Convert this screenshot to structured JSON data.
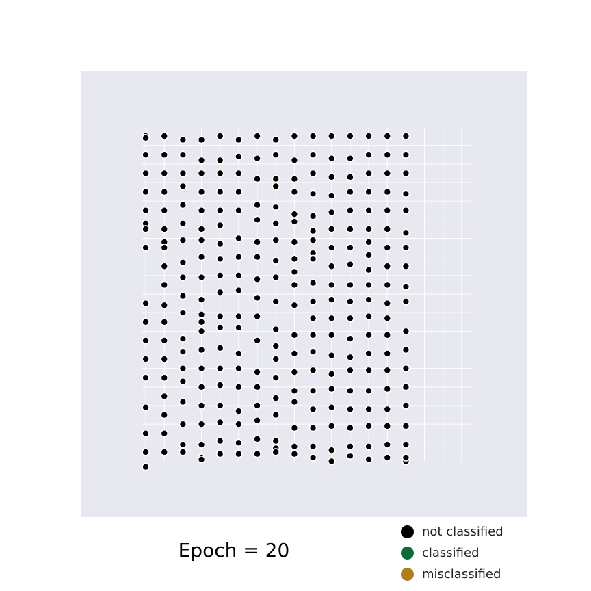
{
  "chart_data": {
    "type": "scatter",
    "caption": "Epoch = 20",
    "grid": true,
    "xlim": [
      -3.5,
      20.5
    ],
    "ylim": [
      -3.5,
      20.5
    ],
    "legend_position": "bottom-right",
    "legend": [
      {
        "label": "not classified",
        "color": "#000000"
      },
      {
        "label": "classified",
        "color": "#0b6b3a"
      },
      {
        "label": "misclassified",
        "color": "#b07d1e"
      }
    ],
    "series": [
      {
        "label": "not classified",
        "color": "#000000",
        "rows": [
          [
            0,
            0.1,
            1,
            2,
            3,
            4,
            4.7,
            5,
            6,
            9,
            10,
            11,
            12,
            13,
            14.6,
            16,
            17,
            17.8
          ],
          [
            0,
            1,
            2,
            3,
            4,
            5,
            5.7,
            6,
            7,
            8,
            9.1,
            10,
            11,
            12,
            13,
            14,
            15,
            16,
            17
          ],
          [
            0.2,
            1,
            2,
            2.7,
            3.7,
            4.7,
            5.6,
            6.8,
            7.6,
            8.6,
            9.5,
            10.9,
            11.6,
            12.5,
            13.2,
            14.3,
            15.5,
            16.6,
            17
          ],
          [
            0.2,
            1.3,
            2,
            3,
            4,
            5,
            5.6,
            6.5,
            7.6,
            8.8,
            9.6,
            10,
            10.5,
            11.5,
            12.5,
            13.5,
            14.5,
            15.5,
            16.6,
            17.3,
            17.4
          ],
          [
            0,
            1.3,
            2,
            3,
            4,
            4.8,
            5.8,
            6.6,
            7.5,
            8.4,
            9.7,
            10.3,
            11.4,
            12.5,
            13.4,
            14.5,
            15.4,
            16.4,
            17.1
          ],
          [
            0.2,
            1.1,
            2,
            3,
            4,
            5.5,
            6.5,
            7.5,
            8.3,
            9.7,
            10.3,
            11.7,
            12.5,
            13.5,
            14.8,
            15.5,
            16.5,
            17.1
          ],
          [
            0,
            1.2,
            2.3,
            3.7,
            4.5,
            5.7,
            6.5,
            7.7,
            8.7,
            9.7,
            11,
            12.7,
            13.5,
            14.5,
            15.3,
            16.3,
            17.1
          ],
          [
            0.2,
            1,
            2.3,
            2.7,
            3.8,
            4.7,
            5.6,
            6.7,
            7.6,
            8.9,
            10.4,
            11.3,
            12,
            13,
            14.1,
            15,
            16.4,
            16.8,
            17
          ],
          [
            0,
            1.3,
            2.3,
            3,
            4.2,
            4.6,
            5.7,
            6.6,
            7.3,
            8,
            9.1,
            10.7,
            11.7,
            12.7,
            13.7,
            14.3,
            15.7,
            16.7,
            17.1
          ],
          [
            0,
            1,
            2,
            3.1,
            4.3,
            5.1,
            5.6,
            6.3,
            6.6,
            7.9,
            8.9,
            9.8,
            10.7,
            11.6,
            12.6,
            13.7,
            14.7,
            15.7,
            16.7,
            17.3
          ],
          [
            0,
            1.2,
            2.2,
            3.2,
            4.1,
            5,
            6,
            7,
            8,
            8.8,
            9.8,
            10.7,
            11.8,
            12.8,
            13.6,
            14.6,
            15.6,
            16.9,
            17.5
          ],
          [
            0,
            1.2,
            2.2,
            3,
            4,
            5,
            6,
            6.9,
            8,
            8.9,
            9.8,
            10.9,
            11.9,
            12.6,
            13.7,
            14.7,
            15.7,
            16.7,
            17.2
          ],
          [
            0,
            1,
            2,
            3,
            4,
            5,
            5.7,
            6.4,
            7.2,
            8,
            8.8,
            9.7,
            10.7,
            11.7,
            12.6,
            13.7,
            14.7,
            15.6,
            16.7,
            17.4
          ],
          [
            0,
            1,
            2,
            3,
            4,
            5,
            6,
            7,
            8,
            9,
            9.8,
            10.7,
            11.7,
            12.6,
            13.6,
            14.7,
            15.6,
            16.6,
            17.3
          ],
          [
            0,
            1,
            2,
            3.1,
            4,
            5.2,
            6,
            7,
            8.1,
            8.9,
            10.5,
            11.5,
            12.5,
            13.5,
            14.5,
            15.6,
            16.6,
            17.5,
            17.3
          ]
        ]
      }
    ]
  }
}
